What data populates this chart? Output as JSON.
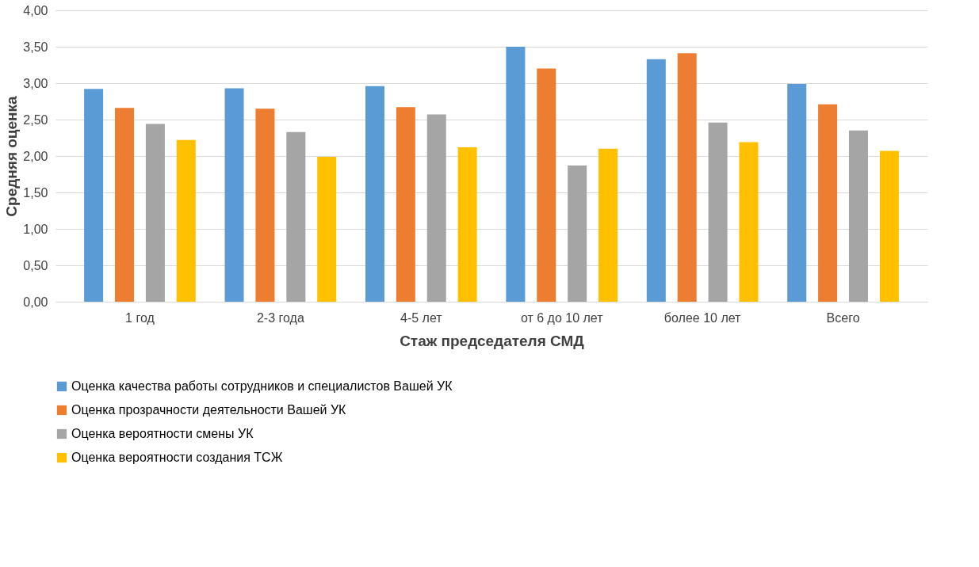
{
  "chart_data": {
    "type": "bar",
    "xlabel": "Стаж председателя СМД",
    "ylabel": "Средняя оценка",
    "categories": [
      "1 год",
      "2-3 года",
      "4-5 лет",
      "от 6 до 10 лет",
      "более 10 лет",
      "Всего"
    ],
    "series": [
      {
        "name": "Оценка качества работы сотрудников и специалистов Вашей УК",
        "color": "#5b9bd5",
        "values": [
          2.92,
          2.93,
          2.96,
          3.5,
          3.33,
          2.99
        ]
      },
      {
        "name": "Оценка прозрачности деятельности Вашей УК",
        "color": "#ed7d31",
        "values": [
          2.66,
          2.65,
          2.67,
          3.2,
          3.41,
          2.71
        ]
      },
      {
        "name": "Оценка вероятности смены УК",
        "color": "#a5a5a5",
        "values": [
          2.44,
          2.33,
          2.57,
          1.87,
          2.46,
          2.35
        ]
      },
      {
        "name": "Оценка вероятности создания ТСЖ",
        "color": "#ffc000",
        "values": [
          2.22,
          1.99,
          2.12,
          2.1,
          2.19,
          2.07
        ]
      }
    ],
    "ylim": [
      0,
      4
    ],
    "yticks": [
      {
        "value": 0,
        "label": "0,00"
      },
      {
        "value": 0.5,
        "label": "0,50"
      },
      {
        "value": 1,
        "label": "1,00"
      },
      {
        "value": 1.5,
        "label": "1,50"
      },
      {
        "value": 2,
        "label": "2,00"
      },
      {
        "value": 2.5,
        "label": "2,50"
      },
      {
        "value": 3,
        "label": "3,00"
      },
      {
        "value": 3.5,
        "label": "3,50"
      },
      {
        "value": 4,
        "label": "4,00"
      }
    ],
    "grid": "y",
    "legend": "bottom"
  }
}
